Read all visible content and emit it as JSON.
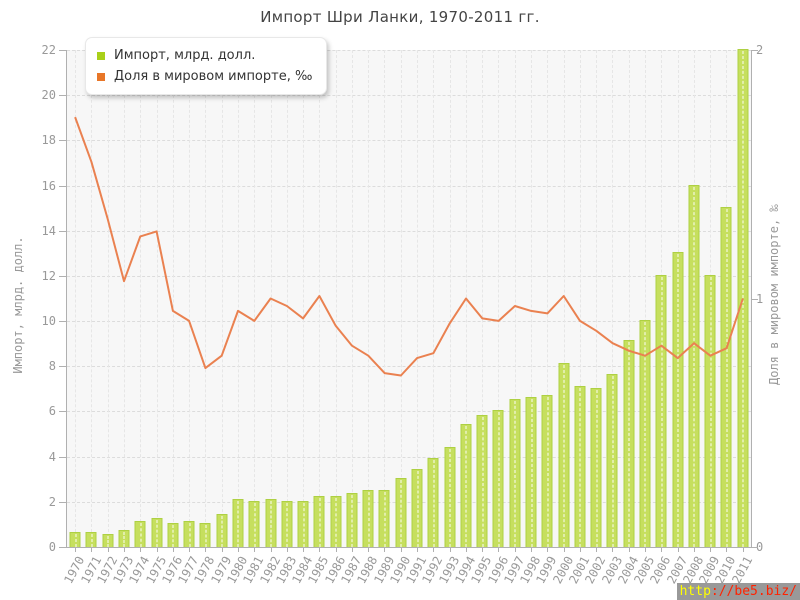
{
  "title": "Импорт Шри Ланки, 1970-2011 гг.",
  "legend": [
    {
      "label": "Импорт, млрд. долл.",
      "color": "#a9d019"
    },
    {
      "label": "Доля в мировом импорте, ‰",
      "color": "#e87628"
    }
  ],
  "watermark": {
    "prefix": "http",
    "rest": "://be5.biz/"
  },
  "chart_data": {
    "type": "bar+line",
    "title": "Импорт Шри Ланки, 1970-2011 гг.",
    "categories": [
      "1970",
      "1971",
      "1972",
      "1973",
      "1974",
      "1975",
      "1976",
      "1977",
      "1978",
      "1979",
      "1980",
      "1981",
      "1982",
      "1983",
      "1984",
      "1985",
      "1986",
      "1987",
      "1988",
      "1989",
      "1990",
      "1991",
      "1992",
      "1993",
      "1994",
      "1995",
      "1996",
      "1997",
      "1998",
      "1999",
      "2000",
      "2001",
      "2002",
      "2003",
      "2004",
      "2005",
      "2006",
      "2007",
      "2008",
      "2009",
      "2010",
      "2011"
    ],
    "series": [
      {
        "name": "Импорт, млрд. долл.",
        "type": "bar",
        "axis": "left",
        "color": "#c6df5e",
        "border_color": "#aed043",
        "values": [
          0.6,
          0.6,
          0.55,
          0.7,
          1.1,
          1.25,
          1.0,
          1.1,
          1.0,
          1.4,
          2.1,
          2.0,
          2.1,
          2.0,
          2.0,
          2.2,
          2.2,
          2.35,
          2.5,
          2.5,
          3.0,
          3.4,
          3.9,
          4.4,
          5.4,
          5.8,
          6.0,
          6.5,
          6.6,
          6.7,
          8.1,
          7.1,
          7.0,
          7.6,
          9.1,
          10.0,
          12.0,
          13.0,
          16.0,
          12.0,
          15.0,
          22.0
        ]
      },
      {
        "name": "Доля в мировом импорте, ‰",
        "type": "line",
        "axis": "right",
        "color": "#ea8150",
        "values": [
          1.73,
          1.55,
          1.32,
          1.07,
          1.25,
          1.27,
          0.95,
          0.91,
          0.72,
          0.77,
          0.95,
          0.91,
          1.0,
          0.97,
          0.92,
          1.01,
          0.89,
          0.81,
          0.77,
          0.7,
          0.69,
          0.76,
          0.78,
          0.9,
          1.0,
          0.92,
          0.91,
          0.97,
          0.95,
          0.94,
          1.01,
          0.91,
          0.87,
          0.82,
          0.79,
          0.77,
          0.81,
          0.76,
          0.82,
          0.77,
          0.8,
          1.0
        ]
      }
    ],
    "y_left": {
      "label": "Импорт, млрд. долл.",
      "min": 0,
      "max": 22,
      "ticks": [
        0,
        2,
        4,
        6,
        8,
        10,
        12,
        14,
        16,
        18,
        20,
        22
      ]
    },
    "y_right": {
      "label": "Доля в мировом импорте, ‰",
      "min": 0,
      "max": 2,
      "ticks": [
        0,
        1,
        2
      ]
    },
    "grid": true,
    "legend_position": "top-left"
  }
}
